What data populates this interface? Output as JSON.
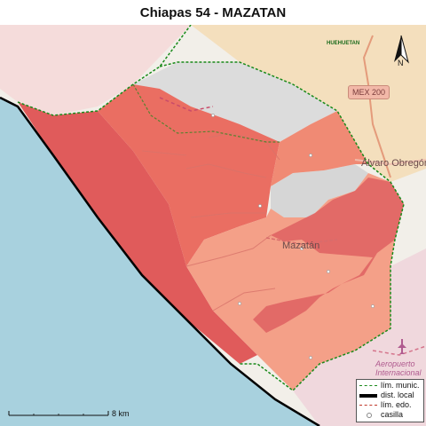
{
  "title": "Chiapas 54 - MAZATAN",
  "map_labels": {
    "road": "MEX 200",
    "place_mazatan": "Mazatán",
    "place_alvaro": "Álvaro Obregón",
    "village_top": "HUEHUETAN",
    "airport_line1": "Aeropuerto",
    "airport_line2": "Internacional"
  },
  "north_arrow": {
    "label": "N"
  },
  "scale_bar": {
    "label": "8 km"
  },
  "legend": {
    "items": [
      {
        "label": "lím. munic.",
        "symbol": "green-dashed-line"
      },
      {
        "label": "dist. local",
        "symbol": "black-thick-line"
      },
      {
        "label": "lím. edo.",
        "symbol": "red-dashed-line"
      },
      {
        "label": "casilla",
        "symbol": "white-dot"
      }
    ]
  },
  "colors": {
    "ocean": "#a8d1de",
    "land": "#f2efe9",
    "district_dark": "#e05b5b",
    "district_mid": "#ef8070",
    "district_light": "#f4a088",
    "municipal_border": "#1a8a1a",
    "neighbor_tan": "#f5dcb5"
  }
}
